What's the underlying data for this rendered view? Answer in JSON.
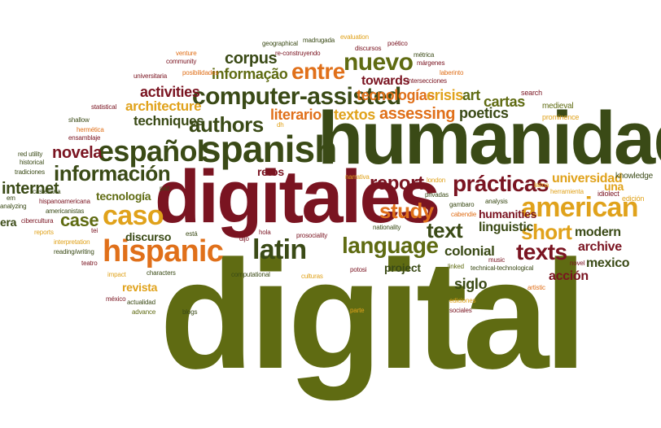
{
  "colors": {
    "olive": "#5f6b12",
    "maroon": "#7a1421",
    "orange": "#e0701a",
    "gold": "#e0a21b",
    "darkgreen": "#3a4a16"
  },
  "words": [
    {
      "id": "digital",
      "text": "digital",
      "color": "olive"
    },
    {
      "id": "humanidades",
      "text": "humanidades",
      "color": "darkgreen"
    },
    {
      "id": "digitales",
      "text": "digitales",
      "color": "maroon"
    },
    {
      "id": "spanish",
      "text": "spanish",
      "color": "darkgreen"
    },
    {
      "id": "espanol",
      "text": "español",
      "color": "darkgreen"
    },
    {
      "id": "hispanic",
      "text": "hispanic",
      "color": "orange"
    },
    {
      "id": "american",
      "text": "american",
      "color": "gold"
    },
    {
      "id": "caso",
      "text": "caso",
      "color": "gold"
    },
    {
      "id": "latin",
      "text": "latin",
      "color": "darkgreen"
    },
    {
      "id": "computer-assisted",
      "text": "computer-assisted",
      "color": "darkgreen"
    },
    {
      "id": "informacion",
      "text": "información",
      "color": "darkgreen"
    },
    {
      "id": "authors",
      "text": "authors",
      "color": "darkgreen"
    },
    {
      "id": "entre",
      "text": "entre",
      "color": "orange"
    },
    {
      "id": "nuevo",
      "text": "nuevo",
      "color": "olive"
    },
    {
      "id": "practicas",
      "text": "prácticas",
      "color": "maroon"
    },
    {
      "id": "language",
      "text": "language",
      "color": "olive"
    },
    {
      "id": "texts",
      "text": "texts",
      "color": "maroon"
    },
    {
      "id": "text",
      "text": "text",
      "color": "darkgreen"
    },
    {
      "id": "study",
      "text": "study",
      "color": "orange"
    },
    {
      "id": "report",
      "text": "report",
      "color": "maroon"
    },
    {
      "id": "short",
      "text": "short",
      "color": "gold"
    },
    {
      "id": "novela",
      "text": "novela",
      "color": "maroon"
    },
    {
      "id": "case",
      "text": "case",
      "color": "olive"
    },
    {
      "id": "internet",
      "text": "internet",
      "color": "darkgreen"
    },
    {
      "id": "corpus",
      "text": "corpus",
      "color": "darkgreen"
    },
    {
      "id": "informacao",
      "text": "informação",
      "color": "olive"
    },
    {
      "id": "activities",
      "text": "activities",
      "color": "maroon"
    },
    {
      "id": "architecture",
      "text": "architecture",
      "color": "gold"
    },
    {
      "id": "techniques",
      "text": "techniques",
      "color": "darkgreen"
    },
    {
      "id": "literario",
      "text": "literario",
      "color": "orange"
    },
    {
      "id": "textos",
      "text": "textos",
      "color": "gold"
    },
    {
      "id": "assessing",
      "text": "assessing",
      "color": "orange"
    },
    {
      "id": "poetics",
      "text": "poetics",
      "color": "darkgreen"
    },
    {
      "id": "tecnologias",
      "text": "tecnologías",
      "color": "orange"
    },
    {
      "id": "crisis",
      "text": "crisis",
      "color": "gold"
    },
    {
      "id": "towards",
      "text": "towards",
      "color": "maroon"
    },
    {
      "id": "art",
      "text": "art",
      "color": "olive"
    },
    {
      "id": "cartas",
      "text": "cartas",
      "color": "olive"
    },
    {
      "id": "retos",
      "text": "retos",
      "color": "maroon"
    },
    {
      "id": "tecnologia",
      "text": "tecnología",
      "color": "olive"
    },
    {
      "id": "discurso",
      "text": "discurso",
      "color": "darkgreen"
    },
    {
      "id": "revista",
      "text": "revista",
      "color": "gold"
    },
    {
      "id": "colonial",
      "text": "colonial",
      "color": "darkgreen"
    },
    {
      "id": "linguistic",
      "text": "linguistic",
      "color": "darkgreen"
    },
    {
      "id": "humanities",
      "text": "humanities",
      "color": "maroon"
    },
    {
      "id": "universidad",
      "text": "universidad",
      "color": "gold"
    },
    {
      "id": "una",
      "text": "una",
      "color": "gold"
    },
    {
      "id": "modern",
      "text": "modern",
      "color": "darkgreen"
    },
    {
      "id": "archive",
      "text": "archive",
      "color": "maroon"
    },
    {
      "id": "mexico",
      "text": "mexico",
      "color": "darkgreen"
    },
    {
      "id": "accion",
      "text": "acción",
      "color": "maroon"
    },
    {
      "id": "siglo",
      "text": "siglo",
      "color": "darkgreen"
    },
    {
      "id": "project",
      "text": "project",
      "color": "darkgreen"
    },
    {
      "id": "era",
      "text": "era",
      "color": "darkgreen"
    },
    {
      "id": "medieval",
      "text": "medieval",
      "color": "olive"
    },
    {
      "id": "search",
      "text": "search",
      "color": "maroon"
    },
    {
      "id": "prominence",
      "text": "prominence",
      "color": "gold"
    },
    {
      "id": "knowledge",
      "text": "knowledge",
      "color": "darkgreen"
    },
    {
      "id": "edicion",
      "text": "edición",
      "color": "gold"
    },
    {
      "id": "idiolect",
      "text": "idiolect",
      "color": "maroon"
    },
    {
      "id": "herramienta",
      "text": "herramienta",
      "color": "gold"
    },
    {
      "id": "latina",
      "text": "latina",
      "color": "gold"
    },
    {
      "id": "analysis",
      "text": "analysis",
      "color": "darkgreen"
    },
    {
      "id": "gambaro",
      "text": "gambaro",
      "color": "darkgreen"
    },
    {
      "id": "cabendie",
      "text": "cabendie",
      "color": "orange"
    },
    {
      "id": "london",
      "text": "london",
      "color": "gold"
    },
    {
      "id": "privadas",
      "text": "privadas",
      "color": "darkgreen"
    },
    {
      "id": "narrativa",
      "text": "narrativa",
      "color": "gold"
    },
    {
      "id": "nationality",
      "text": "nationality",
      "color": "darkgreen"
    },
    {
      "id": "prosociality",
      "text": "prosociality",
      "color": "maroon"
    },
    {
      "id": "hola",
      "text": "hola",
      "color": "maroon"
    },
    {
      "id": "dijo",
      "text": "dijo",
      "color": "maroon"
    },
    {
      "id": "esta",
      "text": "está",
      "color": "darkgreen"
    },
    {
      "id": "potosi",
      "text": "potosi",
      "color": "maroon"
    },
    {
      "id": "culturas",
      "text": "culturas",
      "color": "gold"
    },
    {
      "id": "computational",
      "text": "computational",
      "color": "darkgreen"
    },
    {
      "id": "characters",
      "text": "characters",
      "color": "darkgreen"
    },
    {
      "id": "impact",
      "text": "impact",
      "color": "gold"
    },
    {
      "id": "actualidad",
      "text": "actualidad",
      "color": "darkgreen"
    },
    {
      "id": "advance",
      "text": "advance",
      "color": "olive"
    },
    {
      "id": "blogs",
      "text": "blogs",
      "color": "darkgreen"
    },
    {
      "id": "mexico2",
      "text": "méxico",
      "color": "maroon"
    },
    {
      "id": "teatro",
      "text": "teatro",
      "color": "maroon"
    },
    {
      "id": "readingwriting",
      "text": "reading/writing",
      "color": "darkgreen"
    },
    {
      "id": "interpretation",
      "text": "interpretation",
      "color": "gold"
    },
    {
      "id": "reports",
      "text": "reports",
      "color": "gold"
    },
    {
      "id": "cibercultura",
      "text": "cibercultura",
      "color": "maroon"
    },
    {
      "id": "americanistas",
      "text": "americanistas",
      "color": "darkgreen"
    },
    {
      "id": "hispanoamericana",
      "text": "hispanoamericana",
      "color": "maroon"
    },
    {
      "id": "castellana",
      "text": "castellana",
      "color": "darkgreen"
    },
    {
      "id": "analyzing",
      "text": "analyzing",
      "color": "darkgreen"
    },
    {
      "id": "em",
      "text": "em",
      "color": "darkgreen"
    },
    {
      "id": "tradiciones",
      "text": "tradiciones",
      "color": "darkgreen"
    },
    {
      "id": "historical",
      "text": "historical",
      "color": "darkgreen"
    },
    {
      "id": "redutility",
      "text": "red utility",
      "color": "darkgreen"
    },
    {
      "id": "ensamblaje",
      "text": "ensamblaje",
      "color": "maroon"
    },
    {
      "id": "hermetica",
      "text": "hermética",
      "color": "orange"
    },
    {
      "id": "shallow",
      "text": "shallow",
      "color": "darkgreen"
    },
    {
      "id": "statistical",
      "text": "statistical",
      "color": "maroon"
    },
    {
      "id": "universitaria",
      "text": "universitaria",
      "color": "maroon"
    },
    {
      "id": "community",
      "text": "community",
      "color": "maroon"
    },
    {
      "id": "venture",
      "text": "venture",
      "color": "orange"
    },
    {
      "id": "posibilidades",
      "text": "posibilidades",
      "color": "orange"
    },
    {
      "id": "geographical",
      "text": "geographical",
      "color": "darkgreen"
    },
    {
      "id": "madrugada",
      "text": "madrugada",
      "color": "darkgreen"
    },
    {
      "id": "evaluation",
      "text": "evaluation",
      "color": "gold"
    },
    {
      "id": "poetico",
      "text": "poético",
      "color": "maroon"
    },
    {
      "id": "reconstruyendo",
      "text": "re-construyendo",
      "color": "maroon"
    },
    {
      "id": "discursos",
      "text": "discursos",
      "color": "maroon"
    },
    {
      "id": "margenes",
      "text": "márgenes",
      "color": "maroon"
    },
    {
      "id": "metrica",
      "text": "métrica",
      "color": "darkgreen"
    },
    {
      "id": "laberinto",
      "text": "laberinto",
      "color": "orange"
    },
    {
      "id": "intersecciones",
      "text": "intersecciones",
      "color": "maroon"
    },
    {
      "id": "paz",
      "text": "paz",
      "color": "darkgreen"
    },
    {
      "id": "dh",
      "text": "dh",
      "color": "gold"
    },
    {
      "id": "tei",
      "text": "tei",
      "color": "maroon"
    },
    {
      "id": "music",
      "text": "music",
      "color": "maroon"
    },
    {
      "id": "technicaltech",
      "text": "technical-technological",
      "color": "darkgreen"
    },
    {
      "id": "linked",
      "text": "linked",
      "color": "olive"
    },
    {
      "id": "novel",
      "text": "novel",
      "color": "maroon"
    },
    {
      "id": "artistic",
      "text": "artistic",
      "color": "orange"
    },
    {
      "id": "ediciones",
      "text": "ediciones",
      "color": "gold"
    },
    {
      "id": "sociales",
      "text": "sociales",
      "color": "maroon"
    },
    {
      "id": "parte",
      "text": "parte",
      "color": "gold"
    }
  ]
}
